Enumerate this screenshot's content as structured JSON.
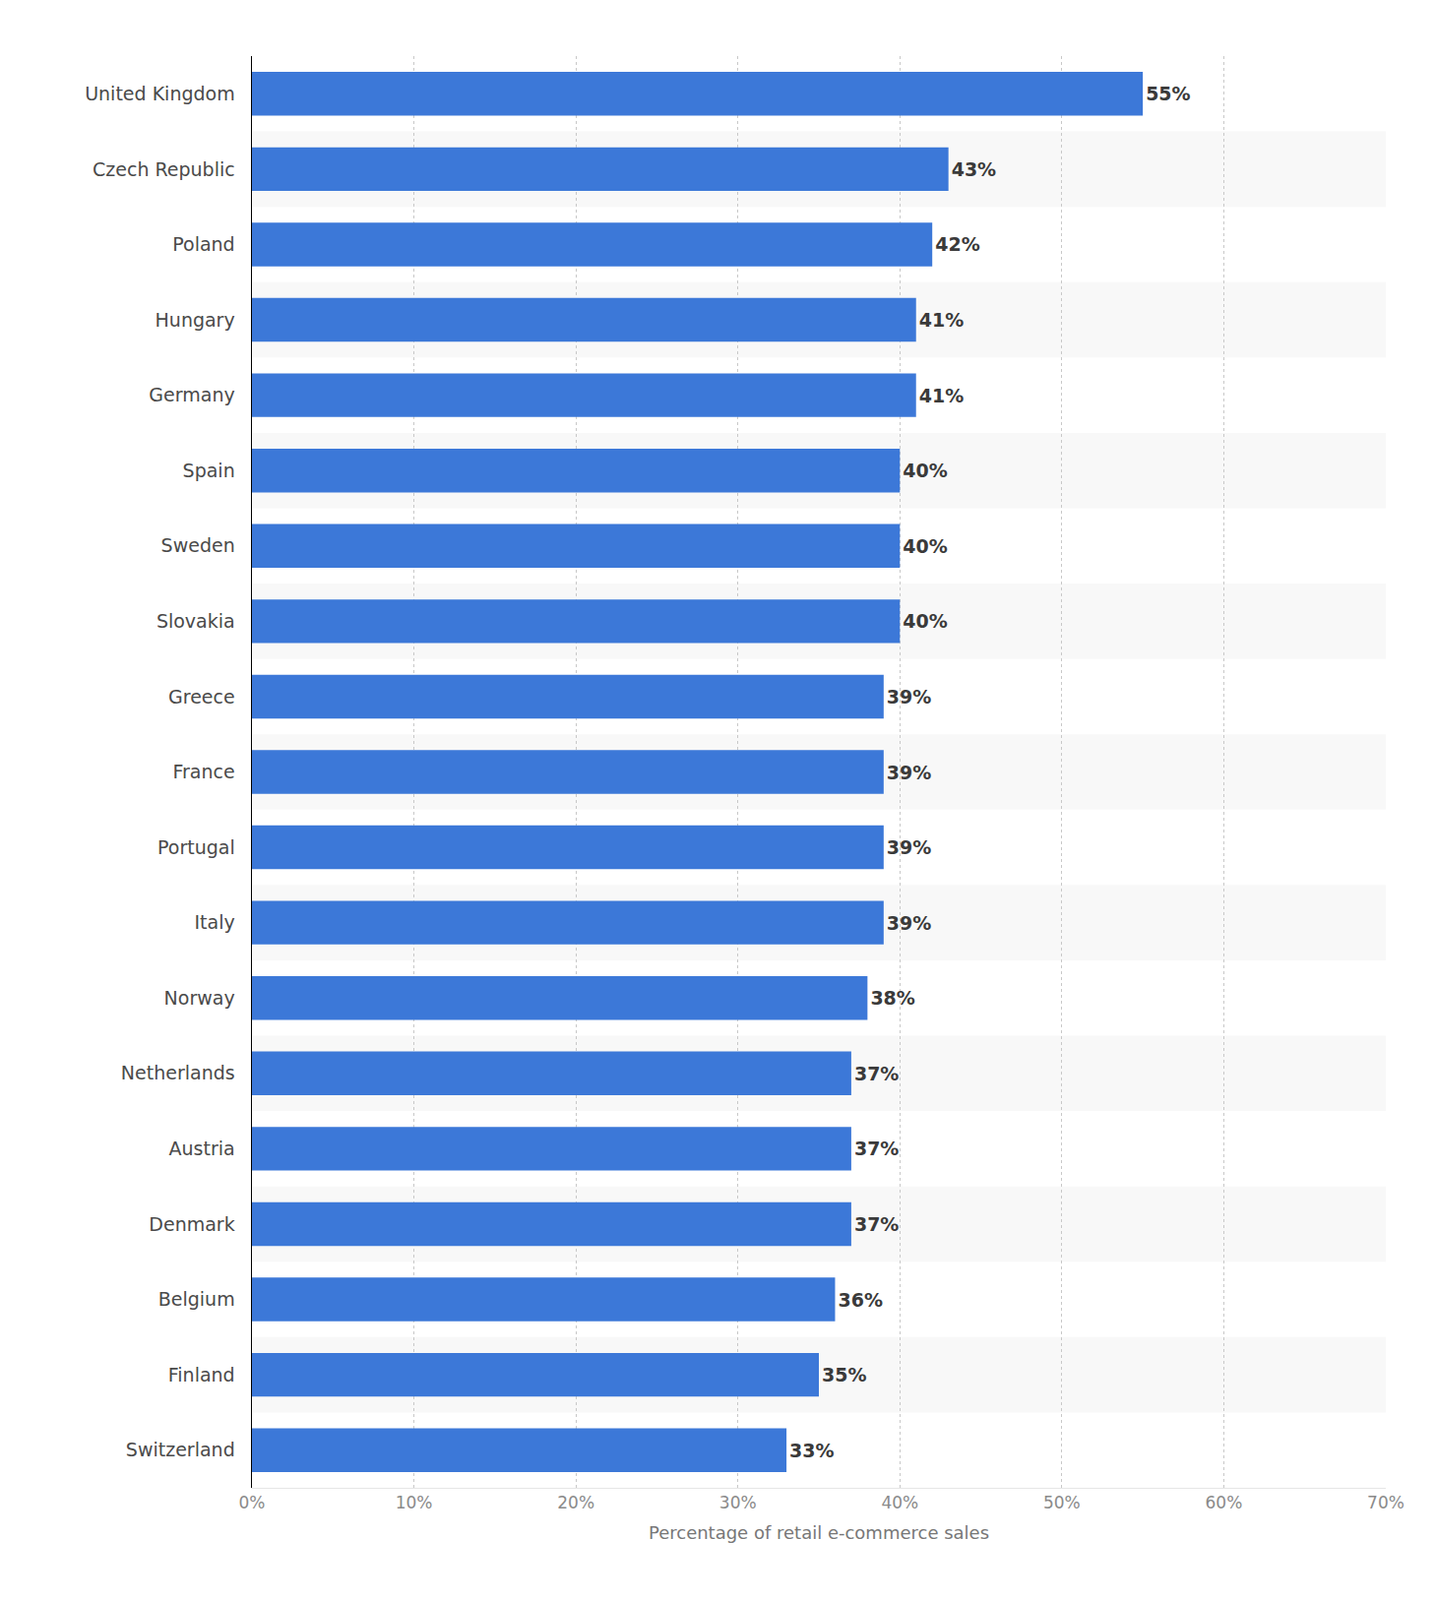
{
  "chart_data": {
    "type": "bar",
    "orientation": "horizontal",
    "x_label": "Percentage of retail e-commerce sales",
    "categories": [
      "United Kingdom",
      "Czech Republic",
      "Poland",
      "Hungary",
      "Germany",
      "Spain",
      "Sweden",
      "Slovakia",
      "Greece",
      "France",
      "Portugal",
      "Italy",
      "Norway",
      "Netherlands",
      "Austria",
      "Denmark",
      "Belgium",
      "Finland",
      "Switzerland"
    ],
    "values": [
      55,
      43,
      42,
      41,
      41,
      40,
      40,
      40,
      39,
      39,
      39,
      39,
      38,
      37,
      37,
      37,
      36,
      35,
      33
    ],
    "value_labels": [
      "55%",
      "43%",
      "42%",
      "41%",
      "41%",
      "40%",
      "40%",
      "40%",
      "39%",
      "39%",
      "39%",
      "39%",
      "38%",
      "37%",
      "37%",
      "37%",
      "36%",
      "35%",
      "33%"
    ],
    "data_labels": true,
    "color": "#3c78d8",
    "xlim": [
      0,
      70
    ],
    "xticks": [
      {
        "value": 0,
        "label": "0%"
      },
      {
        "value": 10,
        "label": "10%"
      },
      {
        "value": 20,
        "label": "20%"
      },
      {
        "value": 30,
        "label": "30%"
      },
      {
        "value": 40,
        "label": "40%"
      },
      {
        "value": 50,
        "label": "50%"
      },
      {
        "value": 60,
        "label": "60%"
      },
      {
        "value": 70,
        "label": "70%"
      }
    ],
    "grid": true
  }
}
